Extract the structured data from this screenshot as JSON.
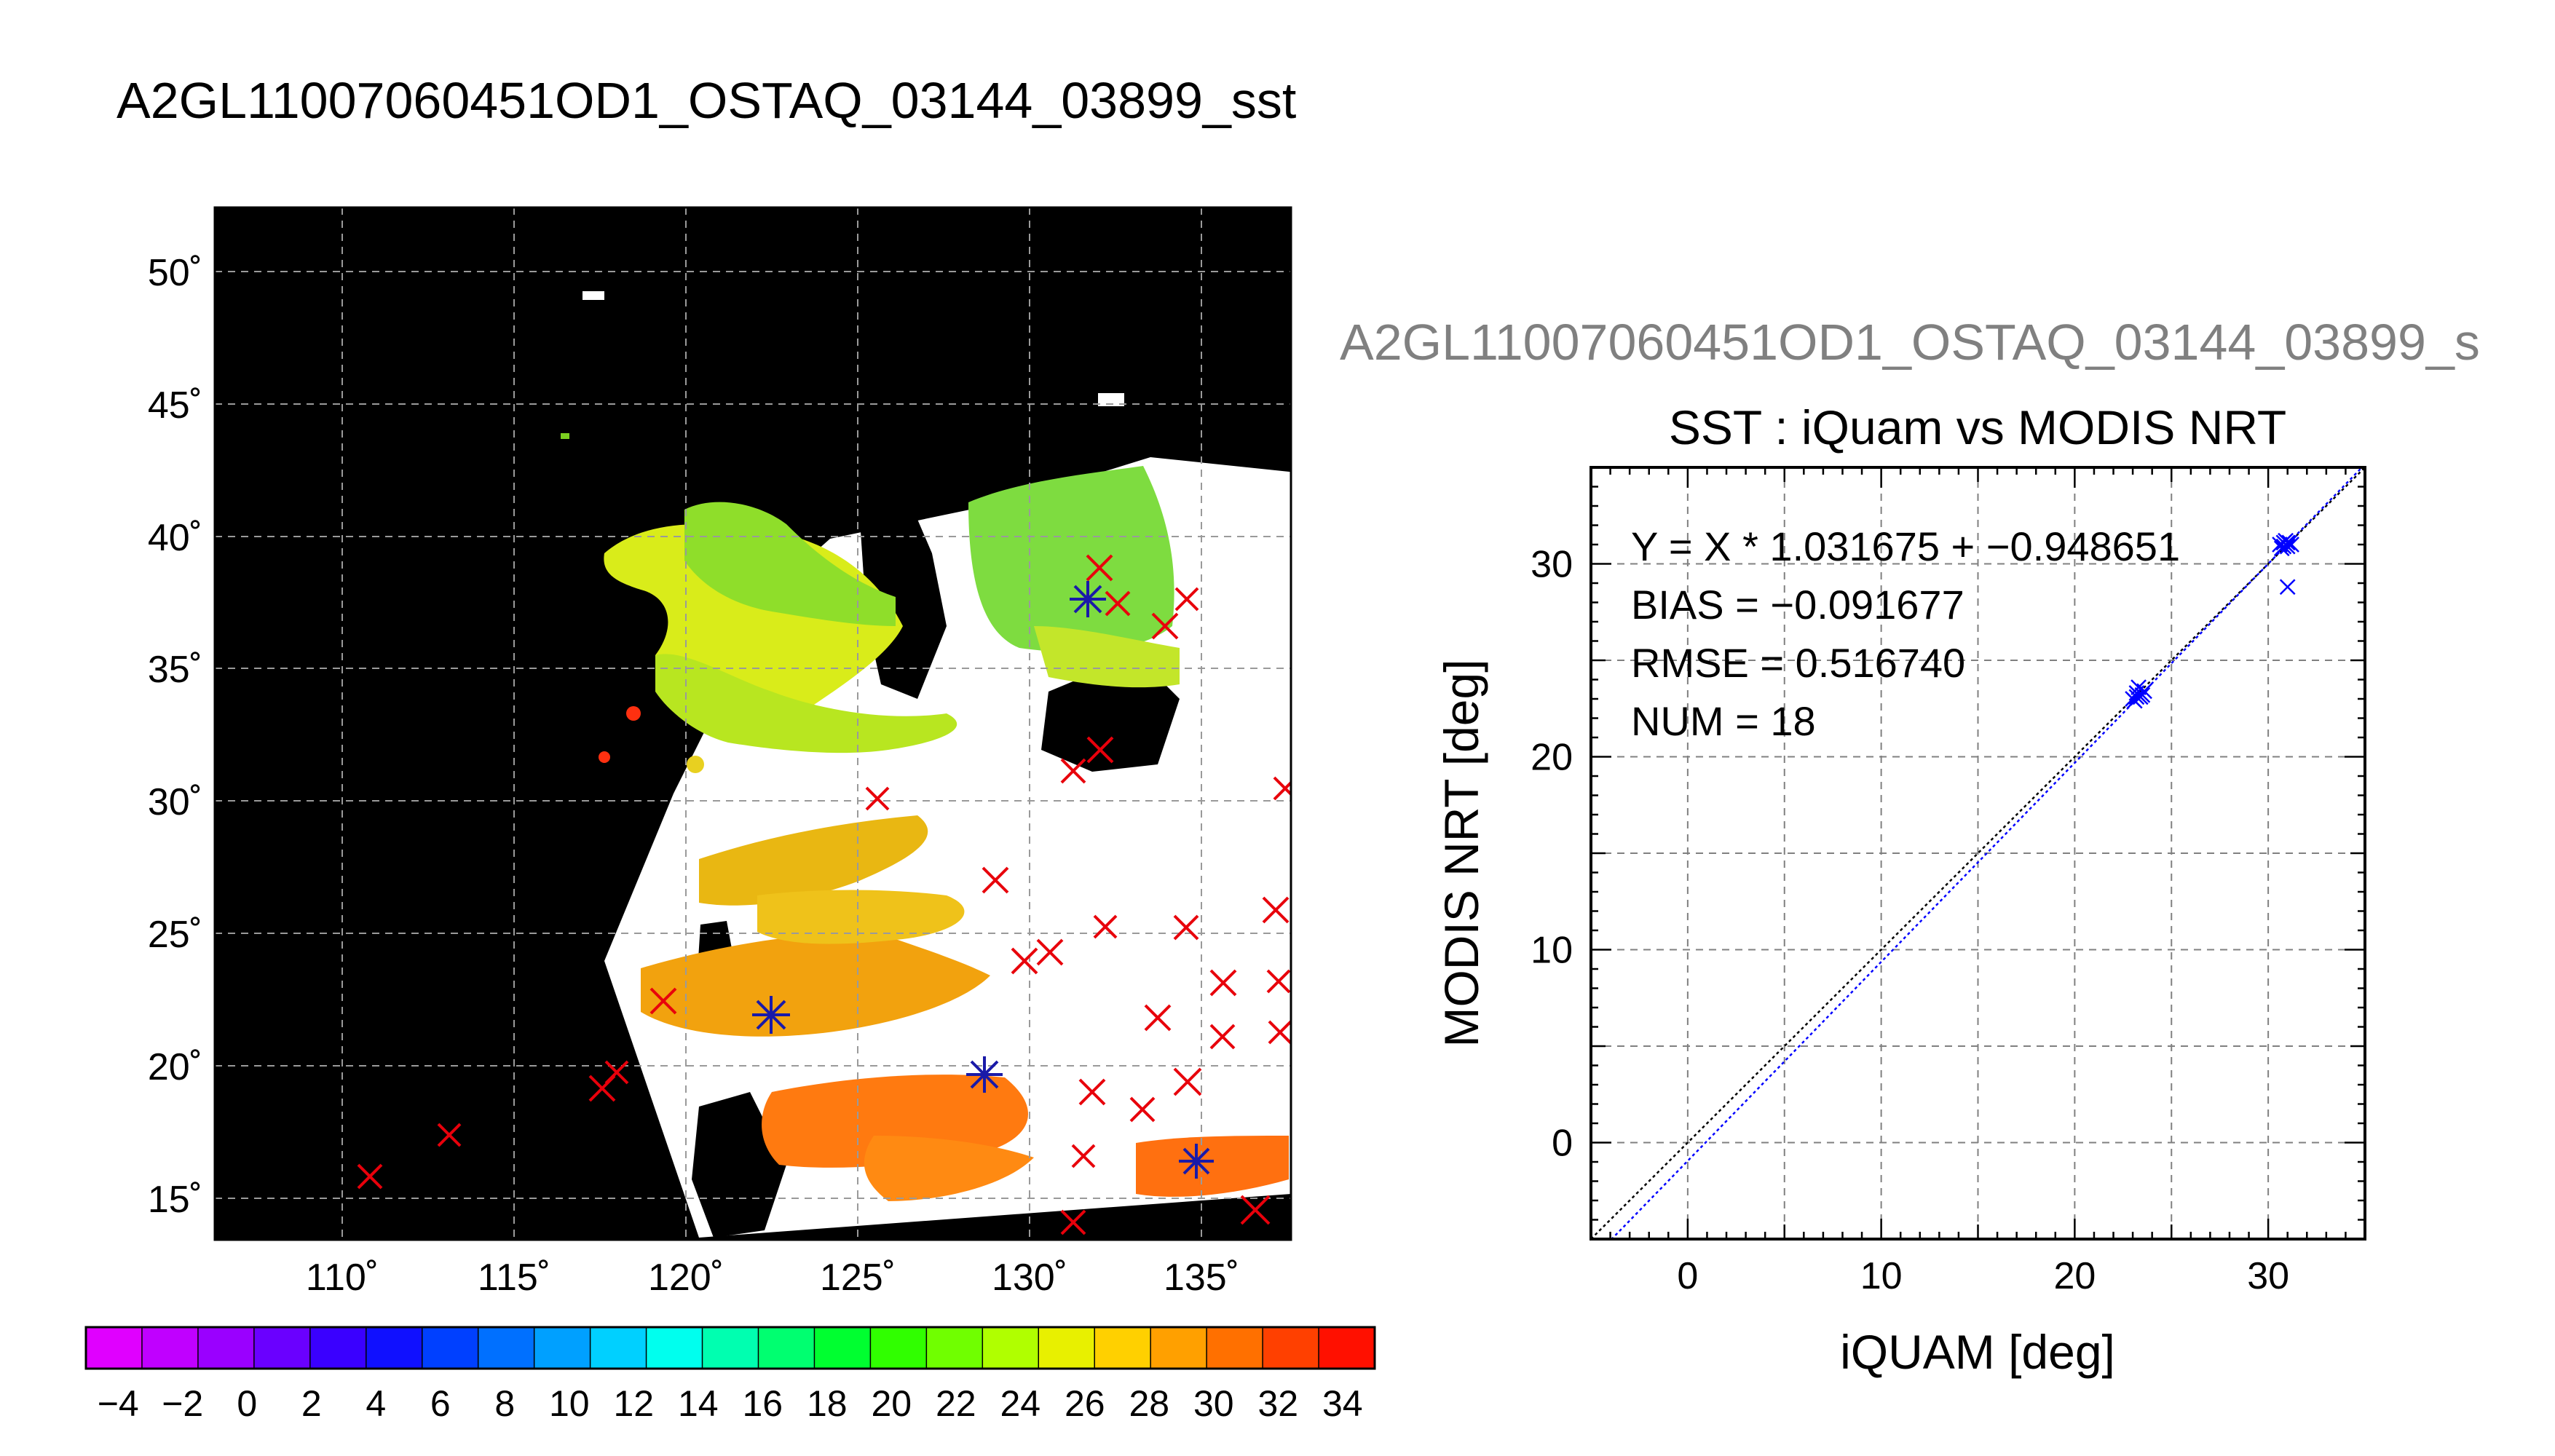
{
  "page": {
    "title": "A2GL11007060451OD1_OSTAQ_03144_03899_sst"
  },
  "map": {
    "lat_ticks": [
      "50˚",
      "45˚",
      "40˚",
      "35˚",
      "30˚",
      "25˚",
      "20˚",
      "15˚"
    ],
    "lon_ticks": [
      "110˚",
      "115˚",
      "120˚",
      "125˚",
      "130˚",
      "135˚"
    ],
    "colors": {
      "background": "#000000",
      "grid": "#9a9a9a",
      "no_data": "#ffffff",
      "buoy_marker": "#e8000b",
      "match_marker": "#1a1aa8"
    }
  },
  "colorbar": {
    "labels": [
      "−4",
      "−2",
      "0",
      "2",
      "4",
      "6",
      "8",
      "10",
      "12",
      "14",
      "16",
      "18",
      "20",
      "22",
      "24",
      "26",
      "28",
      "30",
      "32",
      "34"
    ],
    "colors": [
      "#e000ff",
      "#c000ff",
      "#9a00ff",
      "#6a00ff",
      "#3a00ff",
      "#1010ff",
      "#0040ff",
      "#0070ff",
      "#00a0ff",
      "#00d0ff",
      "#00ffee",
      "#00ffb0",
      "#00ff70",
      "#00ff30",
      "#30ff00",
      "#70ff00",
      "#b0ff00",
      "#e8f000",
      "#ffd000",
      "#ffa000",
      "#ff7000",
      "#ff4000",
      "#ff1000"
    ]
  },
  "scatter": {
    "header": "A2GL11007060451OD1_OSTAQ_03144_03899_s",
    "title": "SST : iQuam vs MODIS NRT",
    "stats": [
      "Y = X * 1.031675 + −0.948651",
      "BIAS = −0.091677",
      "RMSE = 0.516740",
      "NUM = 18"
    ]
  },
  "chart_data": {
    "type": "scatter",
    "title": "SST : iQuam vs MODIS NRT",
    "xlabel": "iQUAM [deg]",
    "ylabel": "MODIS NRT [deg]",
    "xlim": [
      -5,
      35
    ],
    "ylim": [
      -5,
      35
    ],
    "x_ticks": [
      "0",
      "10",
      "20",
      "30"
    ],
    "y_ticks": [
      "0",
      "10",
      "20",
      "30"
    ],
    "grid": true,
    "series": [
      {
        "points": [
          [
            23.0,
            23.0
          ],
          [
            23.2,
            23.3
          ],
          [
            23.4,
            23.1
          ],
          [
            23.5,
            23.2
          ],
          [
            23.3,
            23.6
          ],
          [
            23.1,
            22.9
          ],
          [
            23.6,
            23.4
          ],
          [
            23.2,
            23.1
          ],
          [
            30.6,
            31.0
          ],
          [
            30.8,
            31.1
          ],
          [
            31.0,
            30.9
          ],
          [
            31.1,
            31.1
          ],
          [
            30.9,
            31.2
          ],
          [
            30.7,
            30.8
          ],
          [
            31.2,
            31.0
          ],
          [
            30.8,
            30.9
          ],
          [
            31.0,
            31.1
          ],
          [
            31.0,
            28.8
          ]
        ],
        "color": "#0000ff"
      }
    ],
    "lines": {
      "identity": {
        "slope": 1,
        "intercept": 0,
        "color": "#000000"
      },
      "fit": {
        "slope": 1.031675,
        "intercept": -0.948651,
        "color": "#0000ff"
      }
    }
  }
}
